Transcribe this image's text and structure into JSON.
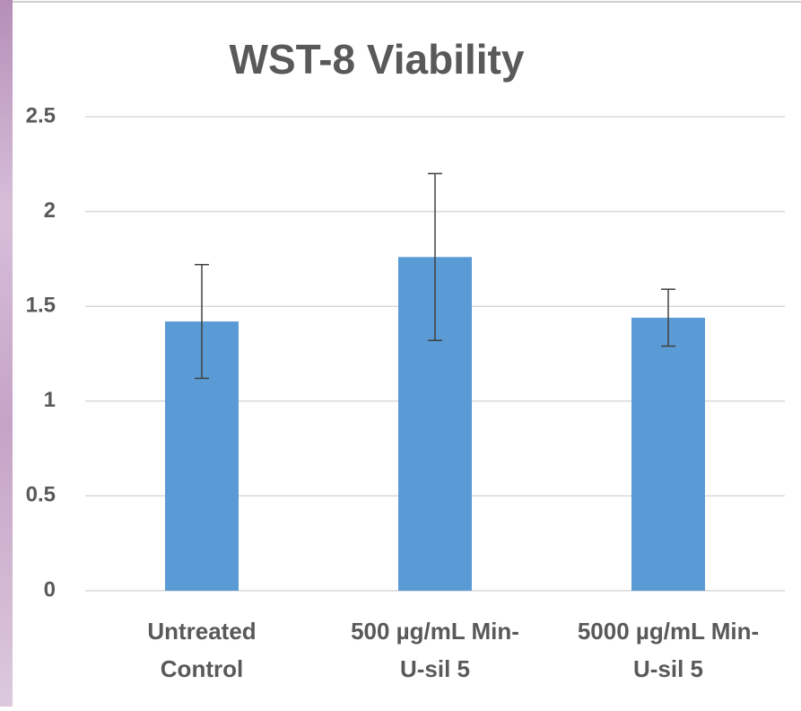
{
  "chart_data": {
    "type": "bar",
    "title": "WST-8 Viability",
    "categories": [
      [
        "Untreated",
        "Control"
      ],
      [
        "500 µg/mL Min-",
        "U-sil 5"
      ],
      [
        "5000 µg/mL Min-",
        "U-sil 5"
      ]
    ],
    "values": [
      1.42,
      1.76,
      1.44
    ],
    "errors": [
      0.3,
      0.44,
      0.15
    ],
    "color": "#5b9bd5",
    "ylim": [
      0,
      2.5
    ],
    "yticks": [
      0,
      0.5,
      1,
      1.5,
      2,
      2.5
    ],
    "grid": true
  }
}
